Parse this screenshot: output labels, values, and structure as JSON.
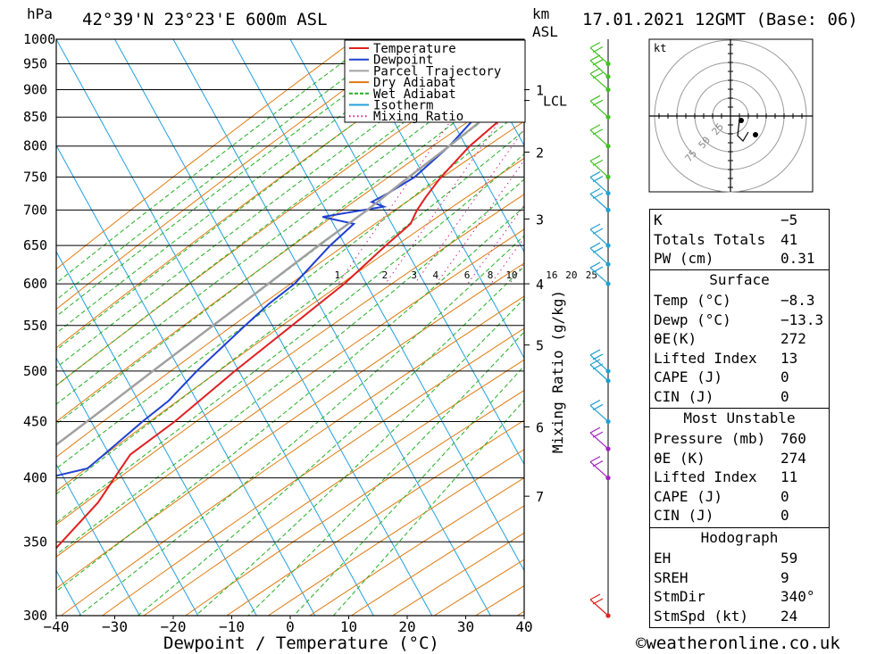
{
  "header": {
    "pressure_unit": "hPa",
    "location": "42°39'N  23°23'E  600m  ASL",
    "km_label": "km",
    "asl_label": "ASL",
    "date_label": "17.01.2021  12GMT  (Base: 06)"
  },
  "credit": "©weatheronline.co.uk",
  "chart_data": {
    "type": "line",
    "title": "42°39'N  23°23'E  600m  ASL",
    "xlabel": "Dewpoint / Temperature (°C)",
    "ylabel": "hPa",
    "y2label": "Mixing Ratio (g/kg)",
    "xlim": [
      -40,
      40
    ],
    "ylim": [
      1000,
      300
    ],
    "y_scale": "log (skew-T)",
    "pressure_levels": [
      300,
      350,
      400,
      450,
      500,
      550,
      600,
      650,
      700,
      750,
      800,
      850,
      900,
      950,
      1000
    ],
    "x_ticks": [
      -40,
      -30,
      -20,
      -10,
      0,
      10,
      20,
      30,
      40
    ],
    "x_tick_labels": [
      "−40",
      "−30",
      "−20",
      "−10",
      "0",
      "10",
      "20",
      "30",
      "40"
    ],
    "km_ticks": [
      {
        "label": "1",
        "p": 900
      },
      {
        "label": "2",
        "p": 790
      },
      {
        "label": "3",
        "p": 687
      },
      {
        "label": "4",
        "p": 600
      },
      {
        "label": "5",
        "p": 528
      },
      {
        "label": "6",
        "p": 445
      },
      {
        "label": "7",
        "p": 385
      },
      {
        "label": "LCL",
        "p": 880
      }
    ],
    "mixing_ratio_labels": [
      "1",
      "2",
      "3",
      "4",
      "6",
      "8",
      "10",
      "16",
      "20",
      "25"
    ],
    "mixing_ratio_values": [
      1,
      2,
      3,
      4,
      6,
      8,
      10,
      16,
      20,
      25
    ],
    "legend": [
      {
        "name": "Temperature",
        "color": "#e02020"
      },
      {
        "name": "Dewpoint",
        "color": "#2040d0"
      },
      {
        "name": "Parcel Trajectory",
        "color": "#a0a0a0"
      },
      {
        "name": "Dry Adiabat",
        "color": "#e07a10"
      },
      {
        "name": "Wet Adiabat",
        "color": "#20b020"
      },
      {
        "name": "Isotherm",
        "color": "#20a0e0"
      },
      {
        "name": "Mixing Ratio",
        "color": "#d0208a"
      }
    ],
    "series": [
      {
        "name": "Temperature",
        "points": [
          [
            950,
            -5.5
          ],
          [
            930,
            -6.5
          ],
          [
            900,
            -8.3
          ],
          [
            880,
            -8.8
          ],
          [
            850,
            -10.5
          ],
          [
            800,
            -13.5
          ],
          [
            750,
            -15.5
          ],
          [
            720,
            -16.2
          ],
          [
            700,
            -16.5
          ],
          [
            680,
            -16.3
          ],
          [
            650,
            -18.5
          ],
          [
            600,
            -22.0
          ],
          [
            550,
            -27.0
          ],
          [
            500,
            -32.5
          ],
          [
            450,
            -38.0
          ],
          [
            420,
            -42.5
          ],
          [
            400,
            -43.0
          ],
          [
            380,
            -43.5
          ],
          [
            350,
            -46.0
          ],
          [
            300,
            -50.5
          ]
        ]
      },
      {
        "name": "Dewpoint",
        "points": [
          [
            950,
            -13.3
          ],
          [
            900,
            -13.5
          ],
          [
            880,
            -15.0
          ],
          [
            860,
            -15.5
          ],
          [
            850,
            -15.2
          ],
          [
            800,
            -17.0
          ],
          [
            750,
            -20.0
          ],
          [
            725,
            -23.0
          ],
          [
            712,
            -25.0
          ],
          [
            705,
            -22.5
          ],
          [
            690,
            -32.0
          ],
          [
            680,
            -26.0
          ],
          [
            650,
            -28.0
          ],
          [
            600,
            -30.5
          ],
          [
            575,
            -33.0
          ],
          [
            550,
            -35.0
          ],
          [
            500,
            -39.0
          ],
          [
            470,
            -41.0
          ],
          [
            450,
            -43.5
          ],
          [
            420,
            -47.0
          ],
          [
            408,
            -48.5
          ],
          [
            398,
            -56.0
          ],
          [
            390,
            -57.0
          ],
          [
            360,
            -60.5
          ],
          [
            330,
            -63.5
          ],
          [
            300,
            -64.0
          ]
        ]
      },
      {
        "name": "Parcel Trajectory",
        "points": [
          [
            950,
            -5.6
          ],
          [
            900,
            -10.0
          ],
          [
            880,
            -11.5
          ],
          [
            850,
            -13.5
          ],
          [
            800,
            -17.0
          ],
          [
            750,
            -21.0
          ],
          [
            700,
            -25.0
          ],
          [
            650,
            -30.0
          ],
          [
            600,
            -35.0
          ],
          [
            550,
            -40.5
          ],
          [
            500,
            -46.5
          ],
          [
            450,
            -53.0
          ],
          [
            400,
            -60.5
          ],
          [
            350,
            -68.0
          ],
          [
            300,
            -77.0
          ]
        ]
      }
    ],
    "wind_barbs_pressure": [
      300,
      400,
      425,
      450,
      490,
      500,
      600,
      625,
      650,
      700,
      725,
      750,
      800,
      850,
      900,
      925,
      950
    ]
  },
  "hodograph": {
    "unit_label": "kt",
    "ring_labels": [
      "25",
      "50",
      "75"
    ]
  },
  "indices": {
    "rows": [
      {
        "label": "K",
        "value": "−5"
      },
      {
        "label": "Totals Totals",
        "value": "41"
      },
      {
        "label": "PW (cm)",
        "value": "0.31"
      }
    ]
  },
  "surface": {
    "title": "Surface",
    "rows": [
      {
        "label": "Temp (°C)",
        "value": "−8.3"
      },
      {
        "label": "Dewp (°C)",
        "value": "−13.3"
      },
      {
        "label": "θE(K)",
        "value": "272"
      },
      {
        "label": "Lifted Index",
        "value": "13"
      },
      {
        "label": "CAPE (J)",
        "value": "0"
      },
      {
        "label": "CIN (J)",
        "value": "0"
      }
    ]
  },
  "most_unstable": {
    "title": "Most Unstable",
    "rows": [
      {
        "label": "Pressure (mb)",
        "value": "760"
      },
      {
        "label": "θE (K)",
        "value": "274"
      },
      {
        "label": "Lifted Index",
        "value": "11"
      },
      {
        "label": "CAPE (J)",
        "value": "0"
      },
      {
        "label": "CIN (J)",
        "value": "0"
      }
    ]
  },
  "hodograph_box": {
    "title": "Hodograph",
    "rows": [
      {
        "label": "EH",
        "value": "59"
      },
      {
        "label": "SREH",
        "value": "9"
      },
      {
        "label": "StmDir",
        "value": "340°"
      },
      {
        "label": "StmSpd (kt)",
        "value": "24"
      }
    ]
  }
}
